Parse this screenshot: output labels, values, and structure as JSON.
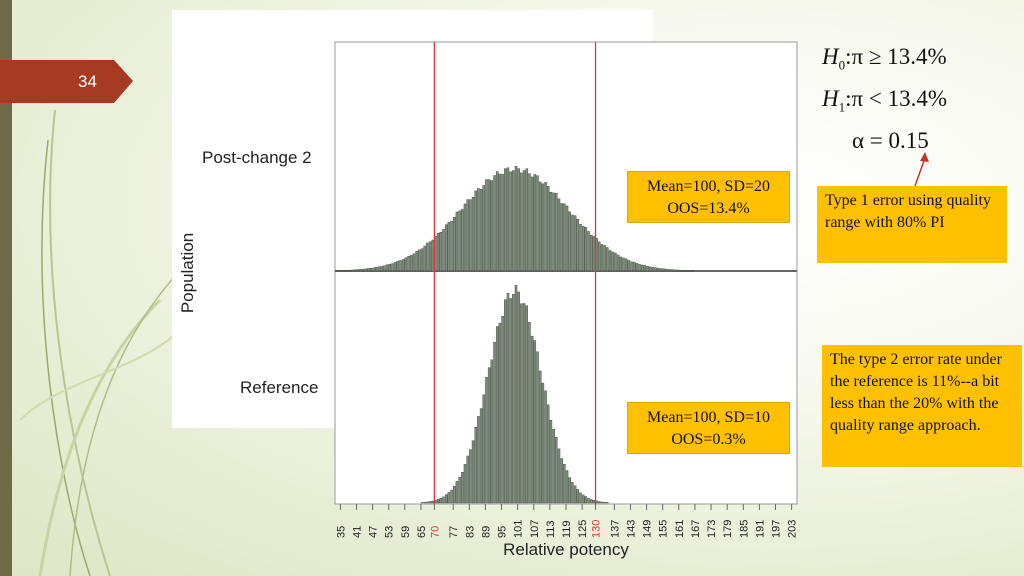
{
  "slide": {
    "number": "34"
  },
  "chart_data": {
    "type": "bar",
    "xlabel": "Relative potency",
    "ylabel": "Population",
    "x_ticks": [
      "35",
      "41",
      "47",
      "53",
      "59",
      "65",
      "70",
      "77",
      "83",
      "89",
      "95",
      "101",
      "107",
      "113",
      "119",
      "125",
      "130",
      "137",
      "143",
      "149",
      "155",
      "161",
      "167",
      "173",
      "179",
      "185",
      "191",
      "197",
      "203"
    ],
    "highlighted_ticks": [
      "70",
      "130"
    ],
    "limit_lines": [
      70,
      130
    ],
    "xlim": [
      33,
      205
    ],
    "panels": [
      {
        "name": "Post-change 2",
        "distribution": "normal",
        "mean": 100,
        "sd": 20,
        "oos_percent": 13.4,
        "annotation": [
          "Mean=100, SD=20",
          "OOS=13.4%"
        ]
      },
      {
        "name": "Reference",
        "distribution": "normal",
        "mean": 100,
        "sd": 10,
        "oos_percent": 0.3,
        "annotation": [
          "Mean=100, SD=10",
          "OOS=0.3%"
        ]
      }
    ],
    "colors": {
      "bar_fill": "#7d8c7b",
      "bar_stroke": "#3c463b",
      "limit_line": "#d63a3a",
      "frame": "#9a9a9a"
    }
  },
  "hypotheses": {
    "h0": {
      "sym": "H",
      "sub": "0",
      "rel": ":π ≥ 13.4%"
    },
    "h1": {
      "sym": "H",
      "sub": "1",
      "rel": ":π < 13.4%"
    },
    "alpha": "α = 0.15"
  },
  "callouts": {
    "type1": "Type 1 error using quality range with 80% PI",
    "type2": "The type 2 error rate under the reference is 11%--a bit less than the 20% with the quality range approach."
  },
  "colors": {
    "accent": "#ffc000",
    "slide_tab": "#a63a22",
    "left_bar": "#6f6b47"
  }
}
